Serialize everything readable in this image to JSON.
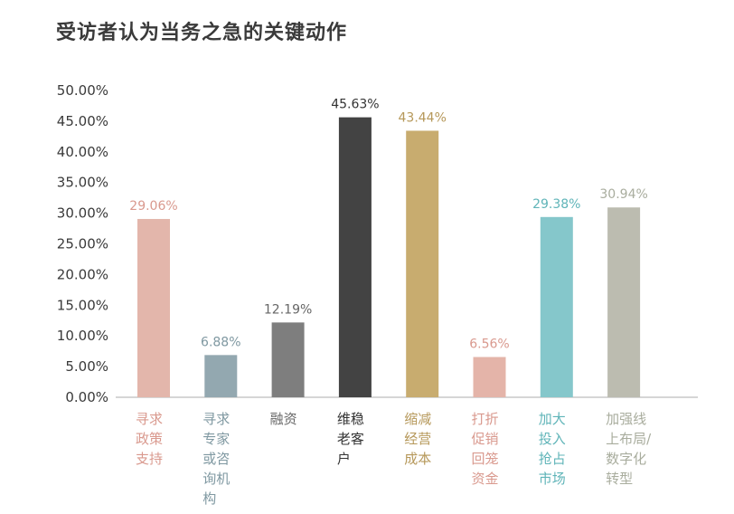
{
  "chart_data": {
    "type": "bar",
    "title": "受访者认为当务之急的关键动作",
    "ylim": [
      0,
      50
    ],
    "yticks": [
      "0.00%",
      "5.00%",
      "10.00%",
      "15.00%",
      "20.00%",
      "25.00%",
      "30.00%",
      "35.00%",
      "40.00%",
      "45.00%",
      "50.00%"
    ],
    "categories": [
      "寻求政策支持",
      "寻求专家或咨询机构",
      "融资",
      "维稳老客户",
      "缩减经营成本",
      "打折促销回笼资金",
      "加大投入抢占市场",
      "加强线上布局/数字化转型"
    ],
    "category_lines": [
      [
        "寻求",
        "政策",
        "支持"
      ],
      [
        "寻求",
        "专家",
        "或咨",
        "询机",
        "构"
      ],
      [
        "融资"
      ],
      [
        "维稳",
        "老客",
        "户"
      ],
      [
        "缩减",
        "经营",
        "成本"
      ],
      [
        "打折",
        "促销",
        "回笼",
        "资金"
      ],
      [
        "加大",
        "投入",
        "抢占",
        "市场"
      ],
      [
        "加强线",
        "上布局/",
        "数字化",
        "转型"
      ]
    ],
    "values": [
      29.06,
      6.88,
      12.19,
      45.63,
      43.44,
      6.56,
      29.38,
      30.94
    ],
    "data_labels": [
      "29.06%",
      "6.88%",
      "12.19%",
      "45.63%",
      "43.44%",
      "6.56%",
      "29.38%",
      "30.94%"
    ],
    "colors": [
      "#e3b6ab",
      "#93a8b0",
      "#7e7e7e",
      "#434343",
      "#c8ac6f",
      "#e4b4a9",
      "#85c7cb",
      "#bcbcb0"
    ],
    "label_colors": [
      "#d9998e",
      "#7f98a1",
      "#666666",
      "#333333",
      "#b6985a",
      "#d9998e",
      "#5fb4b8",
      "#a9ad9e"
    ],
    "axis_color": "#c8c8c8",
    "grid": false,
    "legend": "none"
  }
}
